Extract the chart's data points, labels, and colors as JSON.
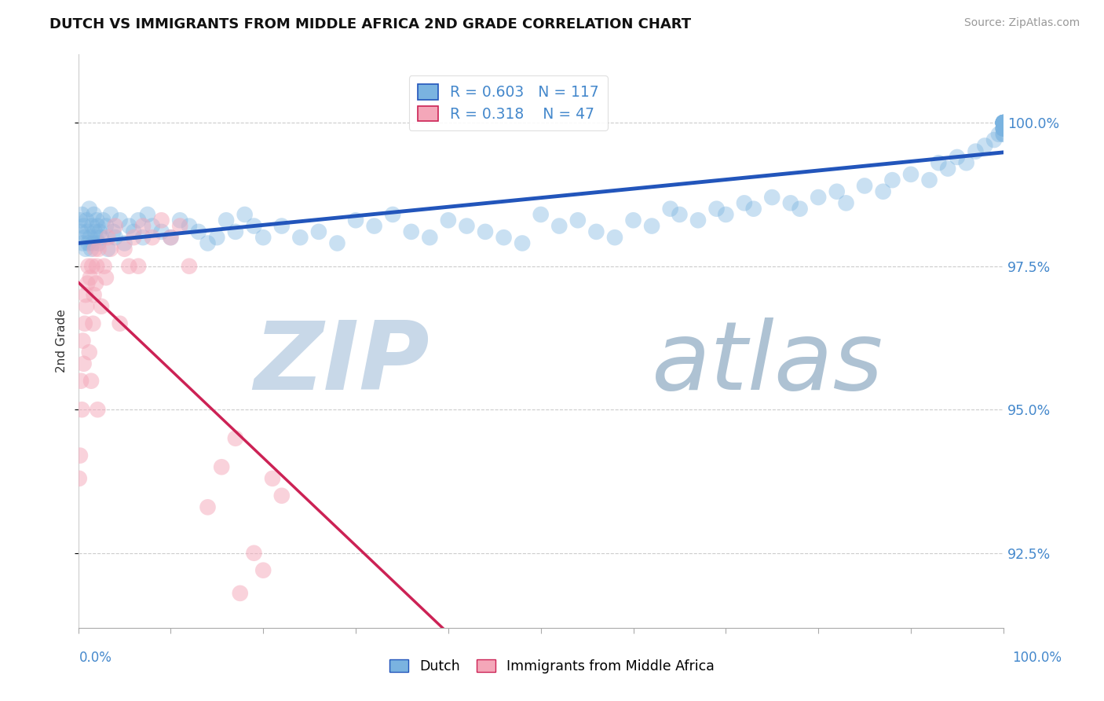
{
  "title": "DUTCH VS IMMIGRANTS FROM MIDDLE AFRICA 2ND GRADE CORRELATION CHART",
  "source": "Source: ZipAtlas.com",
  "ylabel": "2nd Grade",
  "yticks": [
    92.5,
    95.0,
    97.5,
    100.0
  ],
  "ytick_labels": [
    "92.5%",
    "95.0%",
    "97.5%",
    "100.0%"
  ],
  "xmin": 0.0,
  "xmax": 100.0,
  "ymin": 91.2,
  "ymax": 101.2,
  "blue_R": 0.603,
  "blue_N": 117,
  "pink_R": 0.318,
  "pink_N": 47,
  "blue_color": "#7ab3e0",
  "pink_color": "#f4a7b9",
  "blue_line_color": "#2255bb",
  "pink_line_color": "#cc2255",
  "legend_color": "#4488cc",
  "watermark_zip_color": "#c8d8e8",
  "watermark_atlas_color": "#a0b8cc",
  "blue_scatter_x": [
    0.2,
    0.3,
    0.4,
    0.5,
    0.6,
    0.7,
    0.8,
    0.9,
    1.0,
    1.1,
    1.2,
    1.3,
    1.4,
    1.5,
    1.6,
    1.7,
    1.8,
    1.9,
    2.0,
    2.1,
    2.2,
    2.3,
    2.5,
    2.7,
    3.0,
    3.2,
    3.5,
    3.8,
    4.0,
    4.5,
    5.0,
    5.5,
    6.0,
    6.5,
    7.0,
    7.5,
    8.0,
    9.0,
    10.0,
    11.0,
    12.0,
    13.0,
    14.0,
    15.0,
    16.0,
    17.0,
    18.0,
    19.0,
    20.0,
    22.0,
    24.0,
    26.0,
    28.0,
    30.0,
    32.0,
    34.0,
    36.0,
    38.0,
    40.0,
    42.0,
    44.0,
    46.0,
    48.0,
    50.0,
    52.0,
    54.0,
    56.0,
    58.0,
    60.0,
    62.0,
    64.0,
    65.0,
    67.0,
    69.0,
    70.0,
    72.0,
    73.0,
    75.0,
    77.0,
    78.0,
    80.0,
    82.0,
    83.0,
    85.0,
    87.0,
    88.0,
    90.0,
    92.0,
    93.0,
    94.0,
    95.0,
    96.0,
    97.0,
    98.0,
    99.0,
    99.5,
    100.0,
    100.0,
    100.0,
    100.0,
    100.0,
    100.0,
    100.0,
    100.0,
    100.0,
    100.0,
    100.0,
    100.0,
    100.0,
    100.0,
    100.0,
    100.0,
    100.0,
    100.0,
    100.0,
    100.0,
    100.0
  ],
  "blue_scatter_y": [
    98.3,
    98.1,
    98.4,
    97.9,
    98.2,
    98.0,
    97.8,
    98.3,
    98.1,
    97.9,
    98.5,
    98.0,
    97.8,
    98.2,
    97.9,
    98.4,
    98.1,
    98.0,
    98.3,
    98.2,
    97.9,
    98.1,
    98.0,
    98.3,
    98.2,
    97.8,
    98.4,
    98.1,
    98.0,
    98.3,
    97.9,
    98.2,
    98.1,
    98.3,
    98.0,
    98.4,
    98.2,
    98.1,
    98.0,
    98.3,
    98.2,
    98.1,
    97.9,
    98.0,
    98.3,
    98.1,
    98.4,
    98.2,
    98.0,
    98.2,
    98.0,
    98.1,
    97.9,
    98.3,
    98.2,
    98.4,
    98.1,
    98.0,
    98.3,
    98.2,
    98.1,
    98.0,
    97.9,
    98.4,
    98.2,
    98.3,
    98.1,
    98.0,
    98.3,
    98.2,
    98.5,
    98.4,
    98.3,
    98.5,
    98.4,
    98.6,
    98.5,
    98.7,
    98.6,
    98.5,
    98.7,
    98.8,
    98.6,
    98.9,
    98.8,
    99.0,
    99.1,
    99.0,
    99.3,
    99.2,
    99.4,
    99.3,
    99.5,
    99.6,
    99.7,
    99.8,
    99.9,
    100.0,
    99.8,
    99.9,
    100.0,
    100.0,
    99.9,
    100.0,
    100.0,
    99.8,
    100.0,
    99.9,
    100.0,
    100.0,
    100.0,
    100.0,
    99.9,
    100.0,
    100.0,
    100.0,
    100.0
  ],
  "pink_scatter_x": [
    0.1,
    0.2,
    0.3,
    0.4,
    0.5,
    0.6,
    0.7,
    0.8,
    0.9,
    1.0,
    1.1,
    1.2,
    1.3,
    1.4,
    1.5,
    1.6,
    1.7,
    1.8,
    1.9,
    2.0,
    2.1,
    2.2,
    2.5,
    2.8,
    3.0,
    3.2,
    3.5,
    4.0,
    4.5,
    5.0,
    5.5,
    6.0,
    6.5,
    7.0,
    8.0,
    9.0,
    10.0,
    11.0,
    12.0,
    14.0,
    15.5,
    17.0,
    17.5,
    19.0,
    20.0,
    21.0,
    22.0
  ],
  "pink_scatter_y": [
    93.8,
    94.2,
    95.5,
    95.0,
    96.2,
    95.8,
    96.5,
    97.0,
    96.8,
    97.2,
    97.5,
    96.0,
    97.3,
    95.5,
    97.5,
    96.5,
    97.0,
    97.8,
    97.2,
    97.5,
    95.0,
    97.8,
    96.8,
    97.5,
    97.3,
    98.0,
    97.8,
    98.2,
    96.5,
    97.8,
    97.5,
    98.0,
    97.5,
    98.2,
    98.0,
    98.3,
    98.0,
    98.2,
    97.5,
    93.3,
    94.0,
    94.5,
    91.8,
    92.5,
    92.2,
    93.8,
    93.5
  ]
}
